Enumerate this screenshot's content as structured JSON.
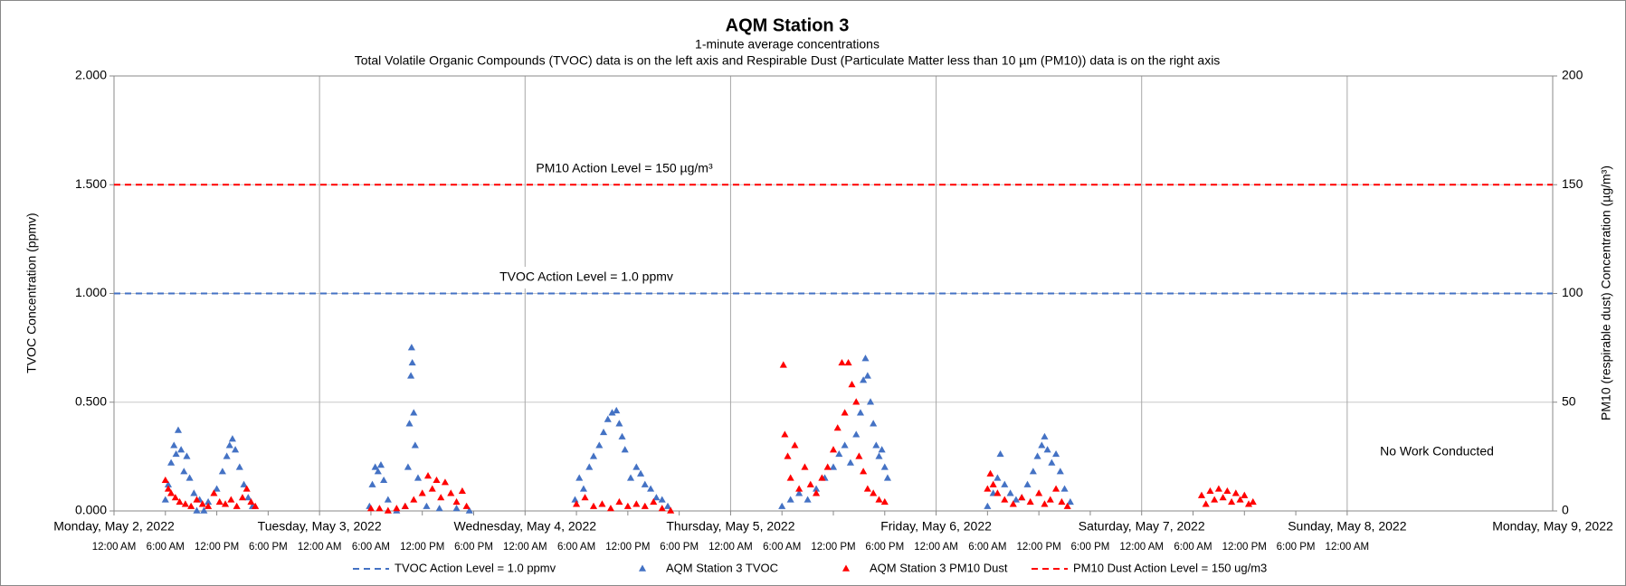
{
  "chart_data": {
    "type": "scatter",
    "title": "AQM Station 3",
    "subtitle": "1-minute average concentrations",
    "subtitle2": "Total Volatile Organic Compounds (TVOC) data is on the left axis and Respirable Dust (Particulate Matter less than 10 µm (PM10)) data is on the right axis",
    "ylabel": "TVOC Concentration (ppmv)",
    "y2label": "PM10 (respirable dust) Concentration (µg/m³)",
    "annotations": [
      "PM10 Action Level = 150 µg/m³",
      "TVOC Action Level = 1.0 ppmv",
      "No Work Conducted"
    ],
    "xlim": [
      "2022-05-02 00:00",
      "2022-05-09 00:00"
    ],
    "xticks": [
      {
        "value": "2022-05-02 00:00",
        "label": "Monday, May 2, 2022"
      },
      {
        "value": "2022-05-03 00:00",
        "label": "Tuesday, May 3, 2022"
      },
      {
        "value": "2022-05-04 00:00",
        "label": "Wednesday, May 4, 2022"
      },
      {
        "value": "2022-05-05 00:00",
        "label": "Thursday, May 5, 2022"
      },
      {
        "value": "2022-05-06 00:00",
        "label": "Friday, May 6, 2022"
      },
      {
        "value": "2022-05-07 00:00",
        "label": "Saturday, May 7, 2022"
      },
      {
        "value": "2022-05-08 00:00",
        "label": "Sunday, May 8, 2022"
      },
      {
        "value": "2022-05-09 00:00",
        "label": "Monday, May 9, 2022"
      }
    ],
    "xminorticks": [
      {
        "value": "2022-05-02 00:00",
        "label": "12:00 AM"
      },
      {
        "value": "2022-05-02 06:00",
        "label": "6:00 AM"
      },
      {
        "value": "2022-05-02 12:00",
        "label": "12:00 PM"
      },
      {
        "value": "2022-05-02 18:00",
        "label": "6:00 PM"
      },
      {
        "value": "2022-05-03 00:00",
        "label": "12:00 AM"
      },
      {
        "value": "2022-05-03 06:00",
        "label": "6:00 AM"
      },
      {
        "value": "2022-05-03 12:00",
        "label": "12:00 PM"
      },
      {
        "value": "2022-05-03 18:00",
        "label": "6:00 PM"
      },
      {
        "value": "2022-05-04 00:00",
        "label": "12:00 AM"
      },
      {
        "value": "2022-05-04 06:00",
        "label": "6:00 AM"
      },
      {
        "value": "2022-05-04 12:00",
        "label": "12:00 PM"
      },
      {
        "value": "2022-05-04 18:00",
        "label": "6:00 PM"
      },
      {
        "value": "2022-05-05 00:00",
        "label": "12:00 AM"
      },
      {
        "value": "2022-05-05 06:00",
        "label": "6:00 AM"
      },
      {
        "value": "2022-05-05 12:00",
        "label": "12:00 PM"
      },
      {
        "value": "2022-05-05 18:00",
        "label": "6:00 PM"
      },
      {
        "value": "2022-05-06 00:00",
        "label": "12:00 AM"
      },
      {
        "value": "2022-05-06 06:00",
        "label": "6:00 AM"
      },
      {
        "value": "2022-05-06 12:00",
        "label": "12:00 PM"
      },
      {
        "value": "2022-05-06 18:00",
        "label": "6:00 PM"
      },
      {
        "value": "2022-05-07 00:00",
        "label": "12:00 AM"
      },
      {
        "value": "2022-05-07 06:00",
        "label": "6:00 AM"
      },
      {
        "value": "2022-05-07 12:00",
        "label": "12:00 PM"
      },
      {
        "value": "2022-05-07 18:00",
        "label": "6:00 PM"
      },
      {
        "value": "2022-05-08 00:00",
        "label": "12:00 AM"
      }
    ],
    "ylim": [
      0,
      2
    ],
    "yticks": [
      {
        "value": 0,
        "label": "0.000"
      },
      {
        "value": 0.5,
        "label": "0.500"
      },
      {
        "value": 1,
        "label": "1.000"
      },
      {
        "value": 1.5,
        "label": "1.500"
      },
      {
        "value": 2,
        "label": "2.000"
      }
    ],
    "y2lim": [
      0,
      200
    ],
    "y2ticks": [
      0,
      50,
      100,
      150,
      200
    ],
    "grid": true,
    "legend": "bottom",
    "series": [
      {
        "name": "TVOC Action Level = 1.0 ppmv",
        "color": "#4472c4",
        "style": "dashed-line",
        "x": [
          "2022-05-02 00:00",
          "2022-05-09 00:00"
        ],
        "values": [
          1,
          1
        ]
      },
      {
        "name": "AQM Station 3 TVOC",
        "color": "#4472c4",
        "style": "triangle",
        "x": [
          "2022-05-02 06:00",
          "2022-05-02 06:20",
          "2022-05-02 06:40",
          "2022-05-02 07:00",
          "2022-05-02 07:15",
          "2022-05-02 07:30",
          "2022-05-02 07:50",
          "2022-05-02 08:10",
          "2022-05-02 08:30",
          "2022-05-02 08:50",
          "2022-05-02 09:20",
          "2022-05-02 09:40",
          "2022-05-02 10:00",
          "2022-05-02 10:30",
          "2022-05-02 11:00",
          "2022-05-02 12:00",
          "2022-05-02 12:40",
          "2022-05-02 13:10",
          "2022-05-02 13:30",
          "2022-05-02 13:50",
          "2022-05-02 14:10",
          "2022-05-02 14:40",
          "2022-05-02 15:10",
          "2022-05-02 15:40",
          "2022-05-02 16:10",
          "2022-05-03 05:50",
          "2022-05-03 06:10",
          "2022-05-03 06:30",
          "2022-05-03 06:50",
          "2022-05-03 07:10",
          "2022-05-03 07:30",
          "2022-05-03 08:00",
          "2022-05-03 09:00",
          "2022-05-03 10:00",
          "2022-05-03 10:20",
          "2022-05-03 10:30",
          "2022-05-03 10:40",
          "2022-05-03 10:45",
          "2022-05-03 10:50",
          "2022-05-03 11:00",
          "2022-05-03 11:10",
          "2022-05-03 11:30",
          "2022-05-03 12:30",
          "2022-05-03 14:00",
          "2022-05-03 16:00",
          "2022-05-03 17:30",
          "2022-05-04 05:50",
          "2022-05-04 06:20",
          "2022-05-04 06:50",
          "2022-05-04 07:30",
          "2022-05-04 08:00",
          "2022-05-04 08:40",
          "2022-05-04 09:10",
          "2022-05-04 09:40",
          "2022-05-04 10:10",
          "2022-05-04 10:40",
          "2022-05-04 11:00",
          "2022-05-04 11:20",
          "2022-05-04 11:40",
          "2022-05-04 12:20",
          "2022-05-04 13:00",
          "2022-05-04 13:30",
          "2022-05-04 14:00",
          "2022-05-04 14:40",
          "2022-05-04 15:20",
          "2022-05-04 16:00",
          "2022-05-04 16:40",
          "2022-05-05 06:00",
          "2022-05-05 07:00",
          "2022-05-05 08:00",
          "2022-05-05 09:00",
          "2022-05-05 10:00",
          "2022-05-05 11:00",
          "2022-05-05 12:00",
          "2022-05-05 12:40",
          "2022-05-05 13:20",
          "2022-05-05 14:00",
          "2022-05-05 14:40",
          "2022-05-05 15:10",
          "2022-05-05 15:30",
          "2022-05-05 15:45",
          "2022-05-05 16:00",
          "2022-05-05 16:20",
          "2022-05-05 16:40",
          "2022-05-05 17:00",
          "2022-05-05 17:20",
          "2022-05-05 17:40",
          "2022-05-05 18:00",
          "2022-05-05 18:20",
          "2022-05-06 06:00",
          "2022-05-06 06:40",
          "2022-05-06 07:10",
          "2022-05-06 07:30",
          "2022-05-06 08:00",
          "2022-05-06 08:40",
          "2022-05-06 09:20",
          "2022-05-06 10:00",
          "2022-05-06 10:40",
          "2022-05-06 11:20",
          "2022-05-06 11:50",
          "2022-05-06 12:20",
          "2022-05-06 12:40",
          "2022-05-06 13:00",
          "2022-05-06 13:30",
          "2022-05-06 14:00",
          "2022-05-06 14:30",
          "2022-05-06 15:00",
          "2022-05-06 15:40"
        ],
        "values": [
          0.05,
          0.12,
          0.22,
          0.3,
          0.26,
          0.37,
          0.28,
          0.18,
          0.25,
          0.15,
          0.08,
          0.0,
          0.05,
          0.0,
          0.04,
          0.1,
          0.18,
          0.25,
          0.3,
          0.33,
          0.28,
          0.2,
          0.12,
          0.06,
          0.02,
          0.02,
          0.12,
          0.2,
          0.18,
          0.21,
          0.14,
          0.05,
          0.0,
          0.02,
          0.2,
          0.4,
          0.62,
          0.75,
          0.68,
          0.45,
          0.3,
          0.15,
          0.02,
          0.01,
          0.01,
          0.0,
          0.05,
          0.15,
          0.1,
          0.2,
          0.25,
          0.3,
          0.36,
          0.42,
          0.45,
          0.46,
          0.4,
          0.34,
          0.28,
          0.15,
          0.2,
          0.17,
          0.12,
          0.1,
          0.06,
          0.05,
          0.02,
          0.02,
          0.05,
          0.08,
          0.05,
          0.1,
          0.15,
          0.2,
          0.26,
          0.3,
          0.22,
          0.35,
          0.45,
          0.6,
          0.7,
          0.62,
          0.5,
          0.4,
          0.3,
          0.25,
          0.28,
          0.2,
          0.15,
          0.02,
          0.08,
          0.15,
          0.26,
          0.12,
          0.08,
          0.05,
          0.06,
          0.12,
          0.18,
          0.25,
          0.3,
          0.34,
          0.28,
          0.22,
          0.26,
          0.18,
          0.1,
          0.04
        ]
      },
      {
        "name": "AQM Station 3 PM10 Dust",
        "color": "#ff0000",
        "style": "triangle",
        "axis": "y2",
        "x": [
          "2022-05-02 06:00",
          "2022-05-02 06:20",
          "2022-05-02 06:40",
          "2022-05-02 07:10",
          "2022-05-02 07:40",
          "2022-05-02 08:20",
          "2022-05-02 09:00",
          "2022-05-02 09:40",
          "2022-05-02 10:20",
          "2022-05-02 11:00",
          "2022-05-02 11:40",
          "2022-05-02 12:20",
          "2022-05-02 13:00",
          "2022-05-02 13:40",
          "2022-05-02 14:20",
          "2022-05-02 15:00",
          "2022-05-02 15:30",
          "2022-05-02 16:00",
          "2022-05-02 16:30",
          "2022-05-03 06:00",
          "2022-05-03 07:00",
          "2022-05-03 08:00",
          "2022-05-03 09:00",
          "2022-05-03 10:00",
          "2022-05-03 11:00",
          "2022-05-03 12:00",
          "2022-05-03 12:40",
          "2022-05-03 13:10",
          "2022-05-03 13:40",
          "2022-05-03 14:10",
          "2022-05-03 14:40",
          "2022-05-03 15:20",
          "2022-05-03 16:00",
          "2022-05-03 16:40",
          "2022-05-03 17:10",
          "2022-05-04 06:00",
          "2022-05-04 07:00",
          "2022-05-04 08:00",
          "2022-05-04 09:00",
          "2022-05-04 10:00",
          "2022-05-04 11:00",
          "2022-05-04 12:00",
          "2022-05-04 13:00",
          "2022-05-04 14:00",
          "2022-05-04 15:00",
          "2022-05-04 16:00",
          "2022-05-04 17:00",
          "2022-05-05 06:10",
          "2022-05-05 06:20",
          "2022-05-05 06:40",
          "2022-05-05 07:00",
          "2022-05-05 07:30",
          "2022-05-05 08:00",
          "2022-05-05 08:40",
          "2022-05-05 09:20",
          "2022-05-05 10:00",
          "2022-05-05 10:40",
          "2022-05-05 11:20",
          "2022-05-05 12:00",
          "2022-05-05 12:30",
          "2022-05-05 13:00",
          "2022-05-05 13:20",
          "2022-05-05 13:45",
          "2022-05-05 14:10",
          "2022-05-05 14:40",
          "2022-05-05 15:00",
          "2022-05-05 15:30",
          "2022-05-05 16:00",
          "2022-05-05 16:40",
          "2022-05-05 17:20",
          "2022-05-05 18:00",
          "2022-05-06 06:00",
          "2022-05-06 06:20",
          "2022-05-06 06:40",
          "2022-05-06 07:10",
          "2022-05-06 08:00",
          "2022-05-06 09:00",
          "2022-05-06 10:00",
          "2022-05-06 11:00",
          "2022-05-06 12:00",
          "2022-05-06 12:40",
          "2022-05-06 13:20",
          "2022-05-06 14:00",
          "2022-05-06 14:40",
          "2022-05-06 15:20",
          "2022-05-07 07:00",
          "2022-05-07 07:30",
          "2022-05-07 08:00",
          "2022-05-07 08:30",
          "2022-05-07 09:00",
          "2022-05-07 09:30",
          "2022-05-07 10:00",
          "2022-05-07 10:30",
          "2022-05-07 11:00",
          "2022-05-07 11:30",
          "2022-05-07 12:00",
          "2022-05-07 12:30",
          "2022-05-07 13:00"
        ],
        "values": [
          14,
          10,
          8,
          6,
          4,
          3,
          2,
          5,
          3,
          2,
          8,
          4,
          3,
          5,
          2,
          6,
          10,
          4,
          2,
          1,
          1,
          0,
          1,
          2,
          5,
          8,
          16,
          10,
          14,
          6,
          13,
          8,
          4,
          9,
          2,
          3,
          6,
          2,
          3,
          1,
          4,
          2,
          3,
          2,
          4,
          1,
          0,
          67,
          35,
          25,
          15,
          30,
          10,
          20,
          12,
          8,
          15,
          20,
          28,
          38,
          68,
          45,
          68,
          58,
          50,
          25,
          18,
          10,
          8,
          5,
          4,
          10,
          17,
          12,
          8,
          5,
          3,
          6,
          4,
          8,
          3,
          5,
          10,
          4,
          2,
          7,
          3,
          9,
          5,
          10,
          6,
          9,
          4,
          8,
          5,
          7,
          3,
          4
        ]
      },
      {
        "name": "PM10 Dust Action Level = 150 ug/m3",
        "color": "#ff0000",
        "style": "dashed-line",
        "axis": "y2",
        "x": [
          "2022-05-02 00:00",
          "2022-05-09 00:00"
        ],
        "values": [
          150,
          150
        ]
      }
    ]
  }
}
